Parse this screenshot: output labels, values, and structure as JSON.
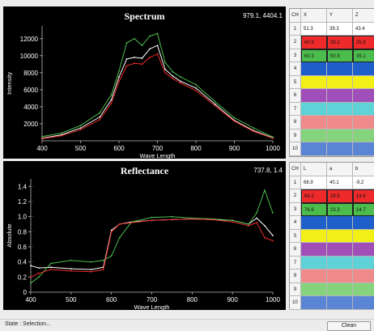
{
  "spectrum": {
    "title": "Spectrum",
    "coord": "979.1, 4404.1",
    "xlabel": "Wave Length",
    "ylabel": "Intensity",
    "xticks": [
      "400",
      "500",
      "600",
      "700",
      "800",
      "900",
      "1000"
    ],
    "yticks": [
      "2000",
      "4000",
      "6000",
      "8000",
      "10000",
      "12000"
    ]
  },
  "reflectance": {
    "title": "Reflectance",
    "coord": "737.8, 1.4",
    "xlabel": "Wave Length",
    "ylabel": "Absolute",
    "xticks": [
      "400",
      "500",
      "600",
      "700",
      "800",
      "900",
      "1000"
    ],
    "yticks": [
      "0",
      "0.2",
      "0.4",
      "0.6",
      "0.8",
      "1.0",
      "1.2",
      "1.4"
    ]
  },
  "xyz_table": {
    "headers": [
      "CH",
      "X",
      "Y",
      "Z"
    ],
    "rows": [
      {
        "ch": "1",
        "a": "51.3",
        "b": "39.3",
        "c": "43.4",
        "color": "#ffffff",
        "boxed": false
      },
      {
        "ch": "2",
        "a": "60.9",
        "b": "38.2",
        "c": "25.8",
        "color": "#ee2a2a",
        "boxed": true
      },
      {
        "ch": "3",
        "a": "60.3",
        "b": "50.9",
        "c": "35.1",
        "color": "#4cbd4c",
        "boxed": true
      },
      {
        "ch": "4",
        "a": "",
        "b": "",
        "c": "",
        "color": "#1f5fc9",
        "boxed": false
      },
      {
        "ch": "5",
        "a": "",
        "b": "",
        "c": "",
        "color": "#f2ef16",
        "boxed": false
      },
      {
        "ch": "6",
        "a": "",
        "b": "",
        "c": "",
        "color": "#a04fb8",
        "boxed": false
      },
      {
        "ch": "7",
        "a": "",
        "b": "",
        "c": "",
        "color": "#5fd2d8",
        "boxed": false
      },
      {
        "ch": "8",
        "a": "",
        "b": "",
        "c": "",
        "color": "#f08b8b",
        "boxed": false
      },
      {
        "ch": "9",
        "a": "",
        "b": "",
        "c": "",
        "color": "#86d37d",
        "boxed": false
      },
      {
        "ch": "10",
        "a": "",
        "b": "",
        "c": "",
        "color": "#5a84d4",
        "boxed": false
      }
    ]
  },
  "lab_table": {
    "headers": [
      "CH",
      "L",
      "a",
      "b"
    ],
    "rows": [
      {
        "ch": "1",
        "a": "68.9",
        "b": "40.1",
        "c": "-9.2",
        "color": "#ffffff",
        "boxed": false
      },
      {
        "ch": "2",
        "a": "68.2",
        "b": "28.5",
        "c": "14.6",
        "color": "#ee2a2a",
        "boxed": true
      },
      {
        "ch": "3",
        "a": "76.6",
        "b": "23.3",
        "c": "14.7",
        "color": "#4cbd4c",
        "boxed": true
      },
      {
        "ch": "4",
        "a": "",
        "b": "",
        "c": "",
        "color": "#1f5fc9",
        "boxed": false
      },
      {
        "ch": "5",
        "a": "",
        "b": "",
        "c": "",
        "color": "#f2ef16",
        "boxed": false
      },
      {
        "ch": "6",
        "a": "",
        "b": "",
        "c": "",
        "color": "#a04fb8",
        "boxed": false
      },
      {
        "ch": "7",
        "a": "",
        "b": "",
        "c": "",
        "color": "#5fd2d8",
        "boxed": false
      },
      {
        "ch": "8",
        "a": "",
        "b": "",
        "c": "",
        "color": "#f08b8b",
        "boxed": false
      },
      {
        "ch": "9",
        "a": "",
        "b": "",
        "c": "",
        "color": "#86d37d",
        "boxed": false
      },
      {
        "ch": "10",
        "a": "",
        "b": "",
        "c": "",
        "color": "#5a84d4",
        "boxed": false
      }
    ]
  },
  "status": {
    "text": "State : Selection...",
    "clean_label": "Clean"
  },
  "chart_data": [
    {
      "type": "line",
      "title": "Spectrum",
      "xlabel": "Wave Length",
      "ylabel": "Intensity",
      "xlim": [
        400,
        1000
      ],
      "ylim": [
        0,
        13500
      ],
      "x": [
        400,
        450,
        500,
        550,
        580,
        600,
        620,
        640,
        660,
        680,
        700,
        720,
        740,
        760,
        800,
        850,
        900,
        950,
        1000
      ],
      "series": [
        {
          "color": "#ffffff",
          "values": [
            300,
            700,
            1500,
            2800,
            4800,
            7500,
            9600,
            9800,
            9700,
            10800,
            11200,
            8400,
            7600,
            7000,
            6200,
            4300,
            2400,
            1200,
            350
          ]
        },
        {
          "color": "#4cbd4c",
          "values": [
            500,
            900,
            1800,
            3300,
            5400,
            8200,
            11500,
            12000,
            11200,
            12300,
            12600,
            9200,
            8100,
            7500,
            6600,
            4600,
            2700,
            1500,
            450
          ]
        },
        {
          "color": "#ee2a2a",
          "values": [
            250,
            600,
            1300,
            2500,
            4400,
            7000,
            8800,
            9100,
            9000,
            9800,
            10200,
            8000,
            7300,
            6800,
            5900,
            4100,
            2300,
            1100,
            300
          ]
        }
      ]
    },
    {
      "type": "line",
      "title": "Reflectance",
      "xlabel": "Wave Length",
      "ylabel": "Absolute",
      "xlim": [
        400,
        1000
      ],
      "ylim": [
        0,
        1.5
      ],
      "x": [
        400,
        420,
        450,
        500,
        550,
        580,
        600,
        620,
        650,
        700,
        750,
        800,
        850,
        900,
        940,
        960,
        980,
        1000
      ],
      "series": [
        {
          "color": "#ffffff",
          "values": [
            0.35,
            0.32,
            0.33,
            0.31,
            0.3,
            0.33,
            0.82,
            0.9,
            0.93,
            0.95,
            0.96,
            0.97,
            0.96,
            0.95,
            0.9,
            0.98,
            0.88,
            0.75
          ]
        },
        {
          "color": "#4cbd4c",
          "values": [
            0.12,
            0.2,
            0.38,
            0.42,
            0.4,
            0.42,
            0.48,
            0.72,
            0.93,
            0.99,
            1.0,
            0.98,
            0.97,
            0.95,
            0.9,
            1.05,
            1.35,
            1.05
          ]
        },
        {
          "color": "#ee2a2a",
          "values": [
            0.2,
            0.25,
            0.3,
            0.28,
            0.27,
            0.3,
            0.8,
            0.9,
            0.92,
            0.95,
            0.96,
            0.97,
            0.96,
            0.93,
            0.88,
            0.92,
            0.72,
            0.68
          ]
        }
      ]
    }
  ]
}
